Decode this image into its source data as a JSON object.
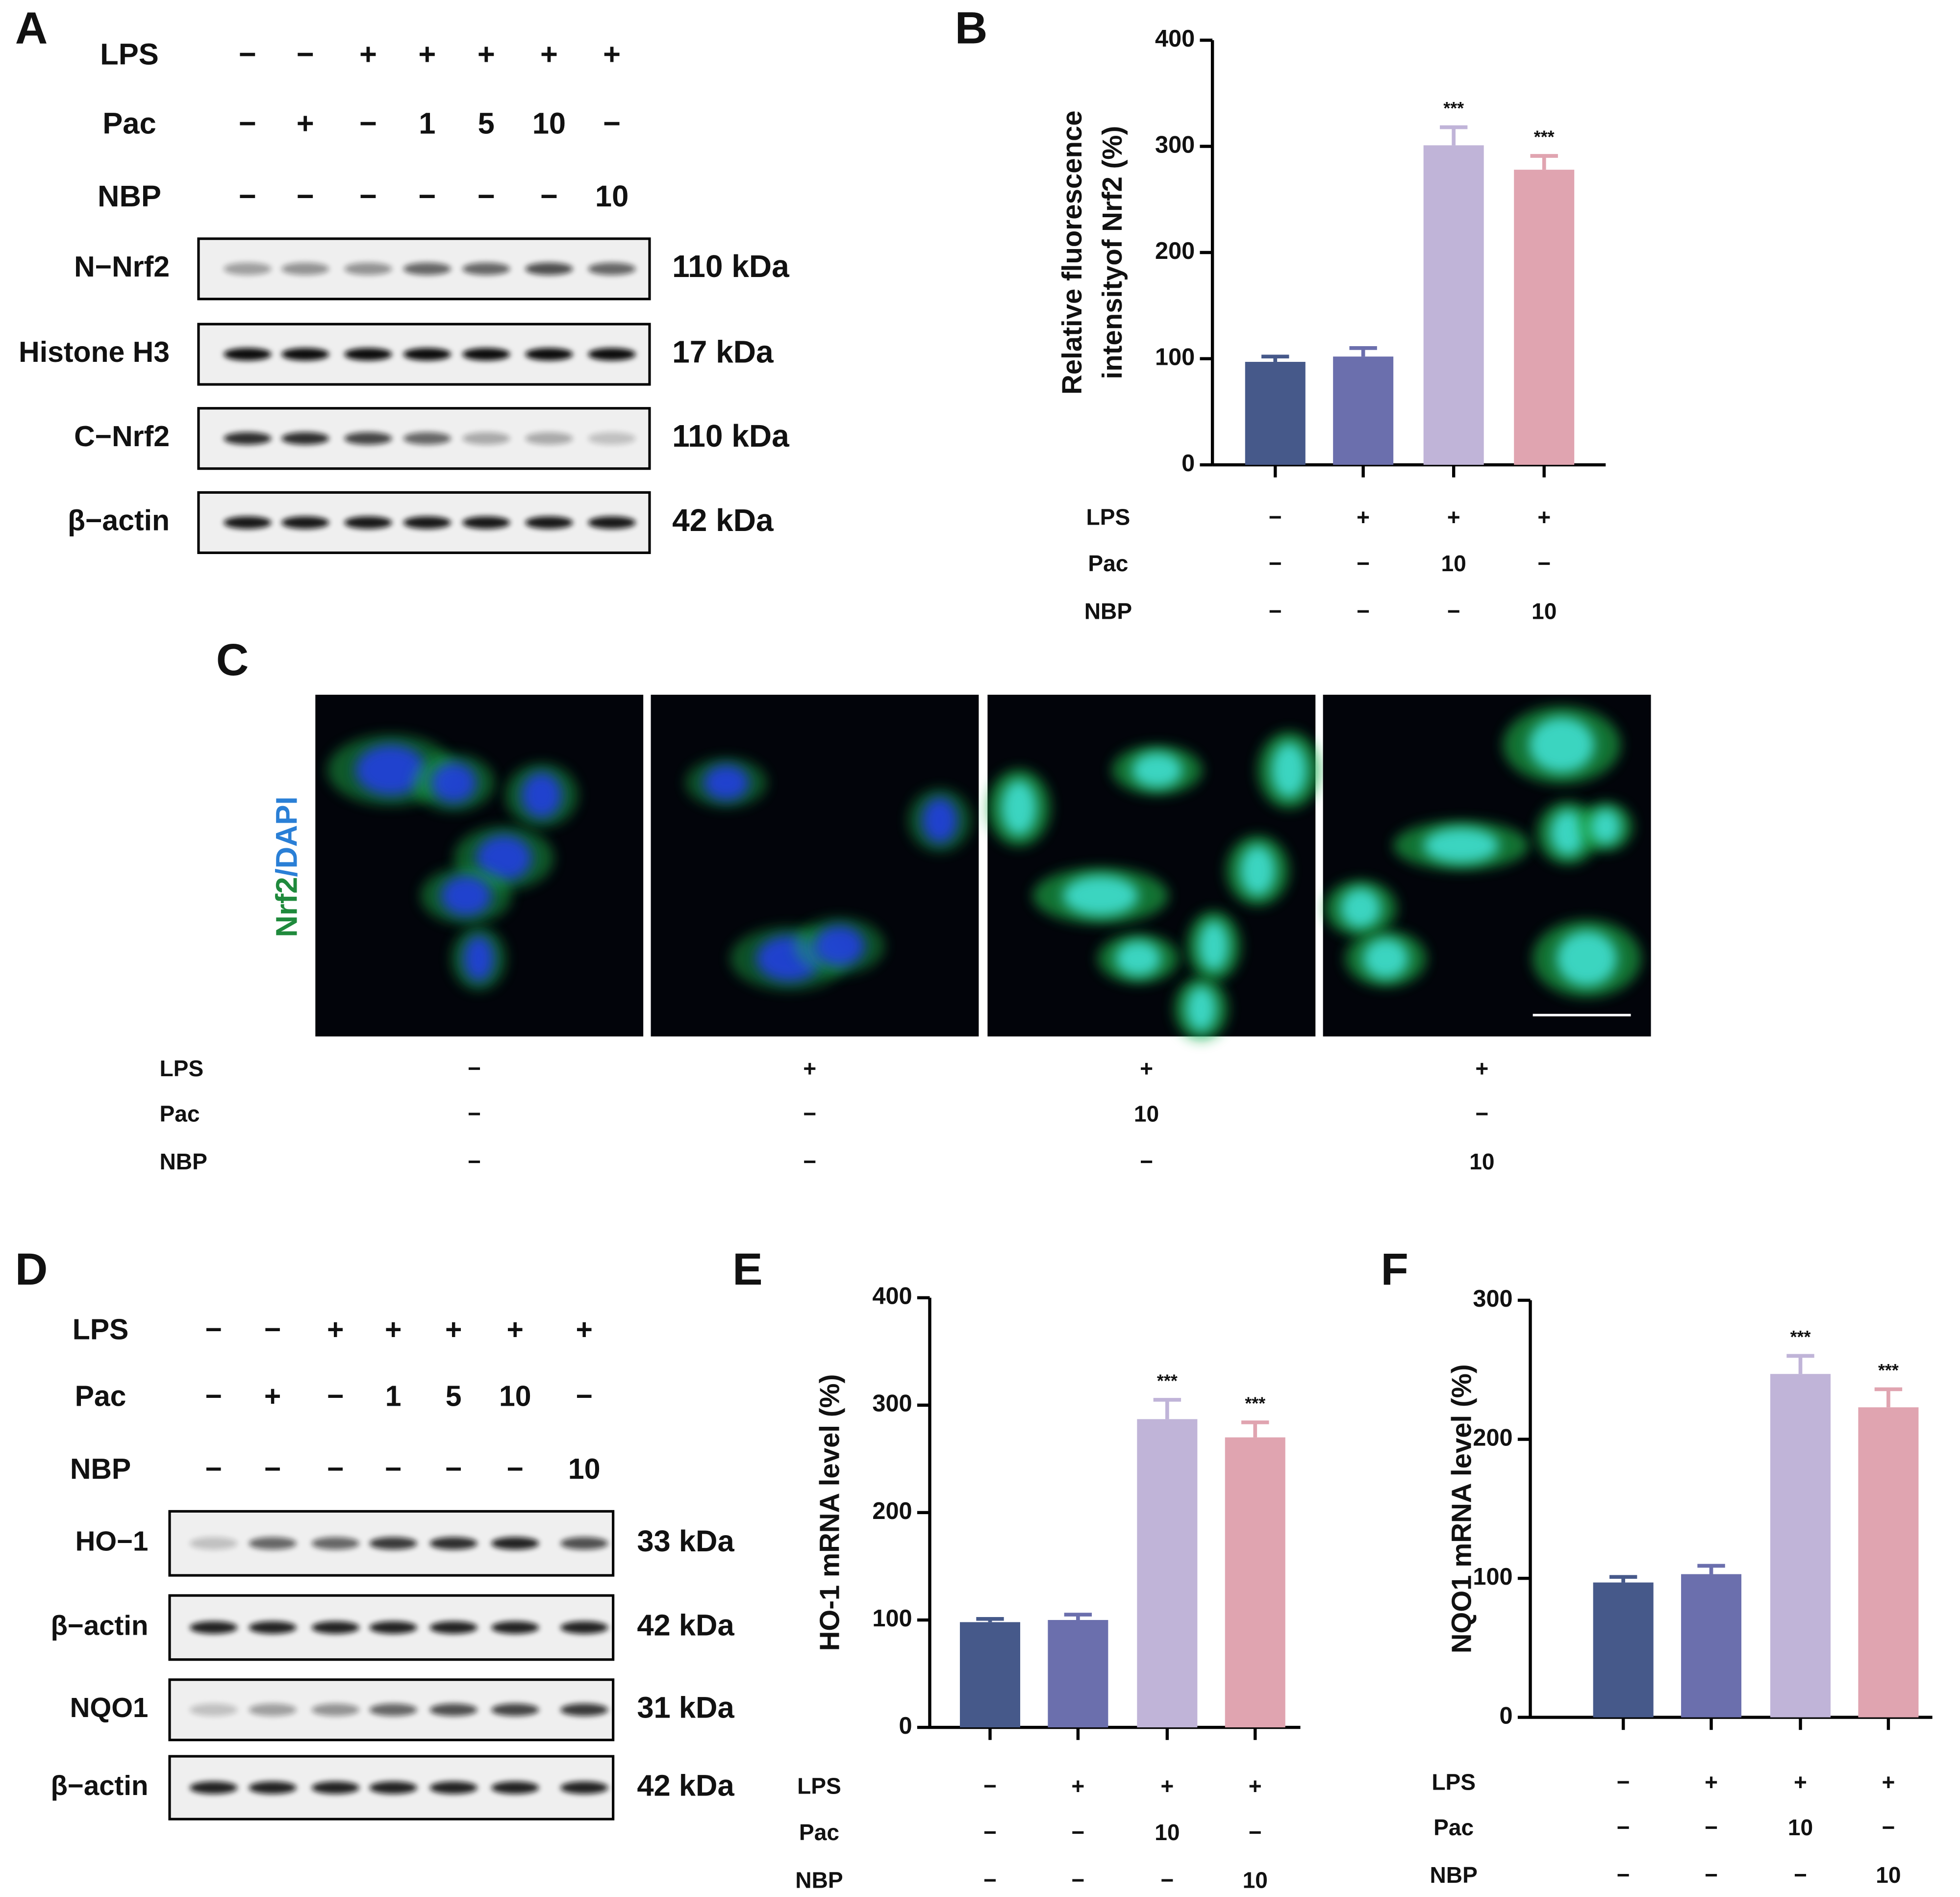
{
  "blot_A": {
    "letter": "A",
    "treatments": [
      {
        "label": "LPS",
        "lanes": [
          "−",
          "−",
          "+",
          "+",
          "+",
          "+",
          "+"
        ]
      },
      {
        "label": "Pac",
        "lanes": [
          "−",
          "+",
          "−",
          "1",
          "5",
          "10",
          "−"
        ]
      },
      {
        "label": "NBP",
        "lanes": [
          "−",
          "−",
          "−",
          "−",
          "−",
          "−",
          "10"
        ]
      }
    ],
    "blots": [
      {
        "label": "N−Nrf2",
        "size": "110 kDa"
      },
      {
        "label": "Histone H3",
        "size": "17 kDa"
      },
      {
        "label": "C−Nrf2",
        "size": "110 kDa"
      },
      {
        "label": "β−actin",
        "size": "42 kDa"
      }
    ]
  },
  "images_C": {
    "letter": "C",
    "stain": {
      "parts": [
        "Nrf2",
        "/DAPI"
      ],
      "colors": [
        "#1f8a3c",
        "#2a7fd6"
      ]
    },
    "treatments": [
      {
        "label": "LPS",
        "lanes": [
          "−",
          "+",
          "+",
          "+"
        ]
      },
      {
        "label": "Pac",
        "lanes": [
          "−",
          "−",
          "10",
          "−"
        ]
      },
      {
        "label": "NBP",
        "lanes": [
          "−",
          "−",
          "−",
          "10"
        ]
      }
    ]
  },
  "blot_D": {
    "letter": "D",
    "treatments": [
      {
        "label": "LPS",
        "lanes": [
          "−",
          "−",
          "+",
          "+",
          "+",
          "+",
          "+"
        ]
      },
      {
        "label": "Pac",
        "lanes": [
          "−",
          "+",
          "−",
          "1",
          "5",
          "10",
          "−"
        ]
      },
      {
        "label": "NBP",
        "lanes": [
          "−",
          "−",
          "−",
          "−",
          "−",
          "−",
          "10"
        ]
      }
    ],
    "blots": [
      {
        "label": "HO−1",
        "size": "33 kDa"
      },
      {
        "label": "β−actin",
        "size": "42 kDa"
      },
      {
        "label": "NQO1",
        "size": "31 kDa"
      },
      {
        "label": "β−actin",
        "size": "42 kDa"
      }
    ]
  },
  "chart_data": [
    {
      "type": "bar",
      "panel": "B",
      "ylabel": [
        "Relative fluorescence",
        "intensityof Nrf2 (%)"
      ],
      "categories": [
        null,
        null,
        null,
        null
      ],
      "values": [
        97,
        102,
        301,
        278
      ],
      "errors": [
        5,
        8,
        17,
        13
      ],
      "colors": [
        "#46598a",
        "#6b6fad",
        "#c0b4d8",
        "#e0a4b0"
      ],
      "value_annotations": [
        null,
        null,
        "***",
        "***"
      ],
      "ylim": [
        0,
        400
      ],
      "yticks": [
        0,
        100,
        200,
        300,
        400
      ],
      "treatments": [
        {
          "label": "LPS",
          "lanes": [
            "−",
            "+",
            "+",
            "+"
          ]
        },
        {
          "label": "Pac",
          "lanes": [
            "−",
            "−",
            "10",
            "−"
          ]
        },
        {
          "label": "NBP",
          "lanes": [
            "−",
            "−",
            "−",
            "10"
          ]
        }
      ]
    },
    {
      "type": "bar",
      "panel": "E",
      "ylabel": [
        "HO-1 mRNA level (%)"
      ],
      "categories": [
        null,
        null,
        null,
        null
      ],
      "values": [
        98,
        100,
        287,
        270
      ],
      "errors": [
        3,
        5,
        18,
        14
      ],
      "colors": [
        "#46598a",
        "#6b6fad",
        "#c0b4d8",
        "#e0a4b0"
      ],
      "value_annotations": [
        null,
        null,
        "***",
        "***"
      ],
      "ylim": [
        0,
        400
      ],
      "yticks": [
        0,
        100,
        200,
        300,
        400
      ],
      "treatments": [
        {
          "label": "LPS",
          "lanes": [
            "−",
            "+",
            "+",
            "+"
          ]
        },
        {
          "label": "Pac",
          "lanes": [
            "−",
            "−",
            "10",
            "−"
          ]
        },
        {
          "label": "NBP",
          "lanes": [
            "−",
            "−",
            "−",
            "10"
          ]
        }
      ]
    },
    {
      "type": "bar",
      "panel": "F",
      "ylabel": [
        "NQO1 mRNA level (%)"
      ],
      "categories": [
        null,
        null,
        null,
        null
      ],
      "values": [
        97,
        103,
        247,
        223
      ],
      "errors": [
        4,
        6,
        13,
        13
      ],
      "colors": [
        "#46598a",
        "#6b6fad",
        "#c0b4d8",
        "#e0a4b0"
      ],
      "value_annotations": [
        null,
        null,
        "***",
        "***"
      ],
      "ylim": [
        0,
        300
      ],
      "yticks": [
        0,
        100,
        200,
        300
      ],
      "treatments": [
        {
          "label": "LPS",
          "lanes": [
            "−",
            "+",
            "+",
            "+"
          ]
        },
        {
          "label": "Pac",
          "lanes": [
            "−",
            "−",
            "10",
            "−"
          ]
        },
        {
          "label": "NBP",
          "lanes": [
            "−",
            "−",
            "−",
            "10"
          ]
        }
      ]
    }
  ]
}
